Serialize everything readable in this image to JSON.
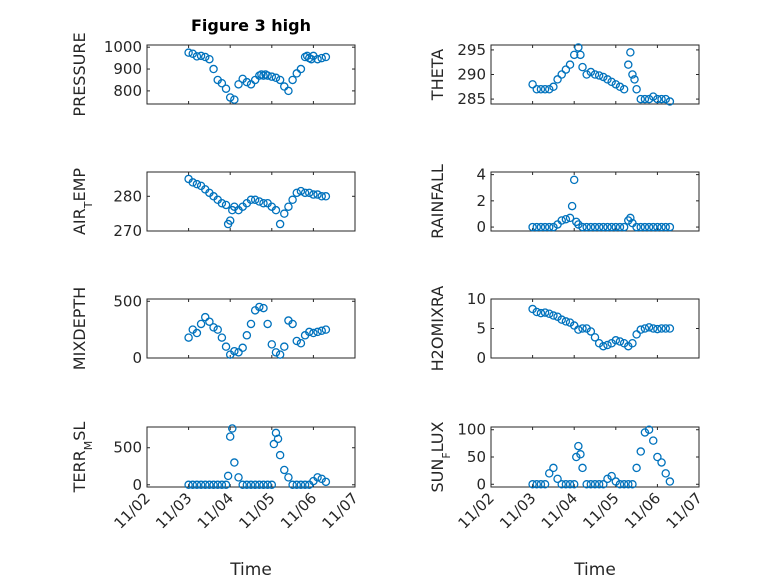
{
  "colors": {
    "marker": "#0072BD",
    "axis": "#262626"
  },
  "chart_data": [
    {
      "type": "scatter",
      "title": "Figure 3 high",
      "ylabel": "PRESSURE",
      "ylabel_sub": "",
      "ylim": [
        740,
        1010
      ],
      "yticks": [
        800,
        900,
        1000
      ],
      "xlabel": "",
      "x": [
        2.0,
        2.1,
        2.2,
        2.3,
        2.4,
        2.5,
        2.6,
        2.7,
        2.8,
        2.9,
        3.0,
        3.1,
        3.2,
        3.3,
        3.4,
        3.5,
        3.6,
        3.7,
        3.75,
        3.8,
        3.85,
        3.9,
        4.0,
        4.1,
        4.2,
        4.3,
        4.4,
        4.5,
        4.6,
        4.7,
        4.8,
        4.85,
        4.9,
        4.95,
        5.0,
        5.1,
        5.2,
        5.3
      ],
      "values": [
        975,
        970,
        958,
        960,
        955,
        945,
        900,
        850,
        835,
        810,
        770,
        760,
        830,
        855,
        840,
        830,
        850,
        870,
        875,
        870,
        875,
        870,
        865,
        860,
        850,
        820,
        800,
        850,
        880,
        900,
        955,
        960,
        950,
        945,
        960,
        945,
        950,
        955
      ]
    },
    {
      "type": "scatter",
      "title": "",
      "ylabel": "THETA",
      "ylabel_sub": "",
      "ylim": [
        284,
        296
      ],
      "yticks": [
        285,
        290,
        295
      ],
      "xlabel": "",
      "x": [
        2.0,
        2.1,
        2.2,
        2.3,
        2.4,
        2.5,
        2.6,
        2.7,
        2.8,
        2.9,
        3.0,
        3.1,
        3.15,
        3.2,
        3.3,
        3.4,
        3.5,
        3.6,
        3.7,
        3.8,
        3.9,
        4.0,
        4.1,
        4.2,
        4.3,
        4.35,
        4.4,
        4.45,
        4.5,
        4.6,
        4.7,
        4.8,
        4.9,
        5.0,
        5.1,
        5.2,
        5.3
      ],
      "values": [
        288,
        287,
        287,
        287,
        287,
        287.5,
        289,
        290,
        291,
        292,
        294,
        295.5,
        294,
        291.5,
        290,
        290.5,
        290,
        289.8,
        289.5,
        289,
        288.5,
        288,
        287.5,
        287,
        292,
        294.5,
        290,
        289,
        287,
        285,
        285,
        285,
        285.5,
        285,
        285,
        285,
        284.5
      ]
    },
    {
      "type": "scatter",
      "title": "",
      "ylabel": "AIR",
      "ylabel_sub": "T",
      "ylabel_suffix": "EMP",
      "ylim": [
        270,
        287
      ],
      "yticks": [
        270,
        280
      ],
      "xlabel": "",
      "x": [
        2.0,
        2.1,
        2.2,
        2.3,
        2.4,
        2.5,
        2.6,
        2.7,
        2.8,
        2.9,
        2.95,
        3.0,
        3.05,
        3.1,
        3.2,
        3.3,
        3.4,
        3.5,
        3.6,
        3.7,
        3.8,
        3.9,
        4.0,
        4.1,
        4.2,
        4.3,
        4.4,
        4.5,
        4.6,
        4.7,
        4.8,
        4.9,
        5.0,
        5.1,
        5.2,
        5.3
      ],
      "values": [
        285,
        284,
        283.5,
        283,
        282,
        281,
        280,
        279,
        278,
        277.5,
        272,
        273,
        276,
        277,
        276,
        277,
        278,
        279,
        279,
        278.5,
        278,
        278,
        277,
        276,
        272,
        275,
        277,
        279,
        281,
        281.5,
        281,
        281,
        280.5,
        280.5,
        280,
        280
      ]
    },
    {
      "type": "scatter",
      "title": "",
      "ylabel": "RAINFALL",
      "ylabel_sub": "",
      "ylim": [
        -0.3,
        4.2
      ],
      "yticks": [
        0,
        2,
        4
      ],
      "xlabel": "",
      "x": [
        2.0,
        2.1,
        2.2,
        2.3,
        2.4,
        2.5,
        2.6,
        2.7,
        2.8,
        2.9,
        2.95,
        3.0,
        3.05,
        3.1,
        3.2,
        3.3,
        3.4,
        3.5,
        3.6,
        3.7,
        3.8,
        3.9,
        4.0,
        4.1,
        4.2,
        4.3,
        4.35,
        4.4,
        4.5,
        4.6,
        4.7,
        4.8,
        4.9,
        5.0,
        5.1,
        5.2,
        5.3
      ],
      "values": [
        0,
        0,
        0,
        0,
        0,
        0,
        0.2,
        0.5,
        0.6,
        0.7,
        1.6,
        3.6,
        0.4,
        0.2,
        0,
        0,
        0,
        0,
        0,
        0,
        0,
        0,
        0,
        0,
        0,
        0.5,
        0.7,
        0.3,
        0,
        0,
        0,
        0,
        0,
        0,
        0,
        0,
        0
      ]
    },
    {
      "type": "scatter",
      "title": "",
      "ylabel": "MIXDEPTH",
      "ylabel_sub": "",
      "ylim": [
        0,
        520
      ],
      "yticks": [
        0,
        500
      ],
      "xlabel": "",
      "x": [
        2.0,
        2.1,
        2.2,
        2.3,
        2.4,
        2.5,
        2.6,
        2.7,
        2.8,
        2.9,
        3.0,
        3.1,
        3.2,
        3.3,
        3.4,
        3.5,
        3.6,
        3.7,
        3.8,
        3.9,
        4.0,
        4.1,
        4.2,
        4.3,
        4.4,
        4.5,
        4.6,
        4.7,
        4.8,
        4.9,
        5.0,
        5.1,
        5.2,
        5.3
      ],
      "values": [
        180,
        250,
        220,
        300,
        360,
        320,
        270,
        250,
        180,
        100,
        30,
        60,
        50,
        90,
        200,
        300,
        420,
        450,
        440,
        300,
        120,
        50,
        30,
        100,
        330,
        300,
        150,
        130,
        200,
        230,
        220,
        230,
        240,
        250
      ]
    },
    {
      "type": "scatter",
      "title": "",
      "ylabel": "H2OMIXRA",
      "ylabel_sub": "",
      "ylim": [
        0,
        10
      ],
      "yticks": [
        0,
        5,
        10
      ],
      "xlabel": "",
      "x": [
        2.0,
        2.1,
        2.2,
        2.3,
        2.4,
        2.5,
        2.6,
        2.7,
        2.8,
        2.9,
        3.0,
        3.1,
        3.2,
        3.3,
        3.4,
        3.5,
        3.6,
        3.7,
        3.8,
        3.9,
        4.0,
        4.1,
        4.2,
        4.3,
        4.4,
        4.5,
        4.6,
        4.7,
        4.8,
        4.9,
        5.0,
        5.1,
        5.2,
        5.3
      ],
      "values": [
        8.3,
        7.8,
        7.6,
        7.7,
        7.5,
        7.2,
        7.0,
        6.5,
        6.2,
        6.0,
        5.5,
        4.8,
        5.0,
        5.0,
        4.5,
        3.5,
        2.5,
        2.0,
        2.2,
        2.5,
        3.0,
        2.8,
        2.5,
        2.0,
        2.5,
        4.0,
        4.8,
        5.0,
        5.2,
        5.0,
        4.9,
        5.0,
        5.0,
        5.0
      ]
    },
    {
      "type": "scatter",
      "title": "",
      "ylabel": "TERR",
      "ylabel_sub": "M",
      "ylabel_suffix": "SL",
      "ylim": [
        -30,
        780
      ],
      "yticks": [
        0,
        500
      ],
      "xlabel": "Time",
      "x": [
        2.0,
        2.1,
        2.2,
        2.3,
        2.4,
        2.5,
        2.6,
        2.7,
        2.8,
        2.9,
        2.95,
        3.0,
        3.05,
        3.1,
        3.2,
        3.3,
        3.4,
        3.5,
        3.6,
        3.7,
        3.8,
        3.9,
        4.0,
        4.05,
        4.1,
        4.15,
        4.2,
        4.3,
        4.4,
        4.5,
        4.6,
        4.7,
        4.8,
        4.9,
        5.0,
        5.1,
        5.2,
        5.3
      ],
      "values": [
        0,
        0,
        0,
        0,
        0,
        0,
        0,
        0,
        0,
        0,
        120,
        650,
        760,
        300,
        100,
        0,
        0,
        0,
        0,
        0,
        0,
        0,
        0,
        550,
        700,
        620,
        400,
        200,
        100,
        0,
        0,
        0,
        0,
        0,
        50,
        100,
        80,
        40
      ]
    },
    {
      "type": "scatter",
      "title": "",
      "ylabel": "SUN",
      "ylabel_sub": "F",
      "ylabel_suffix": "LUX",
      "ylim": [
        -5,
        105
      ],
      "yticks": [
        0,
        50,
        100
      ],
      "xlabel": "Time",
      "x": [
        2.0,
        2.1,
        2.2,
        2.3,
        2.4,
        2.5,
        2.6,
        2.7,
        2.8,
        2.9,
        3.0,
        3.05,
        3.1,
        3.15,
        3.2,
        3.3,
        3.4,
        3.5,
        3.6,
        3.7,
        3.8,
        3.9,
        4.0,
        4.1,
        4.2,
        4.3,
        4.4,
        4.5,
        4.6,
        4.7,
        4.8,
        4.9,
        5.0,
        5.1,
        5.2,
        5.3
      ],
      "values": [
        0,
        0,
        0,
        0,
        20,
        30,
        10,
        0,
        0,
        0,
        0,
        50,
        70,
        55,
        30,
        0,
        0,
        0,
        0,
        0,
        10,
        15,
        5,
        0,
        0,
        0,
        0,
        30,
        60,
        95,
        100,
        80,
        50,
        40,
        20,
        5
      ]
    }
  ],
  "xaxis": {
    "ticks": [
      1,
      2,
      3,
      4,
      5,
      6
    ],
    "tick_labels": [
      "11/02",
      "11/03",
      "11/04",
      "11/05",
      "11/06",
      "11/07"
    ],
    "range": [
      1,
      6
    ]
  }
}
